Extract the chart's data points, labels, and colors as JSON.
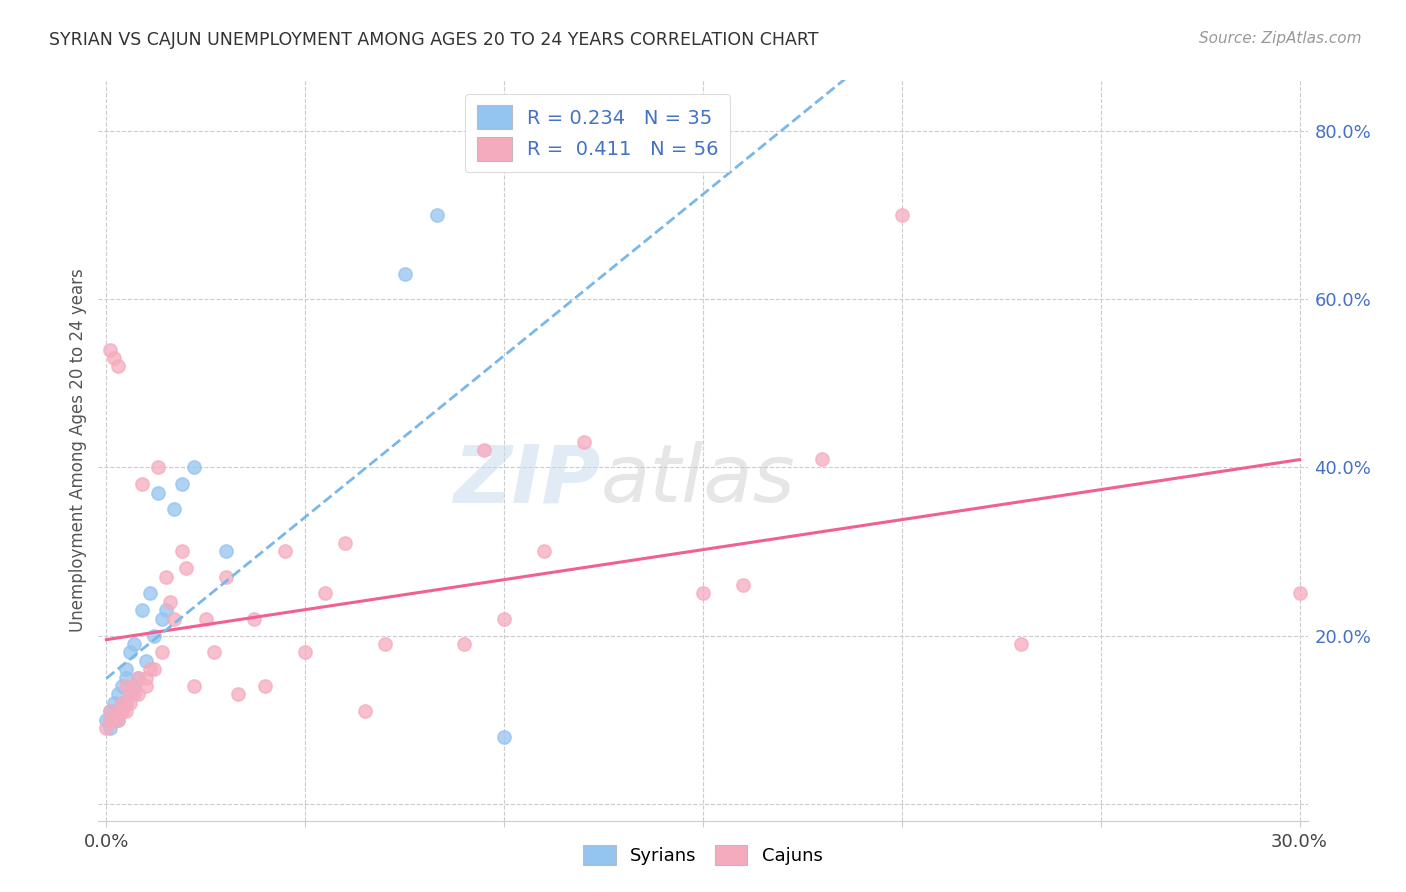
{
  "title": "SYRIAN VS CAJUN UNEMPLOYMENT AMONG AGES 20 TO 24 YEARS CORRELATION CHART",
  "source": "Source: ZipAtlas.com",
  "ylabel": "Unemployment Among Ages 20 to 24 years",
  "xlabel_syrians": "Syrians",
  "xlabel_cajuns": "Cajuns",
  "xlim": [
    -0.002,
    0.302
  ],
  "ylim": [
    -0.02,
    0.86
  ],
  "xtick_positions": [
    0.0,
    0.05,
    0.1,
    0.15,
    0.2,
    0.25,
    0.3
  ],
  "xtick_labels": [
    "0.0%",
    "",
    "",
    "",
    "",
    "",
    "30.0%"
  ],
  "ytick_positions": [
    0.0,
    0.2,
    0.4,
    0.6,
    0.8
  ],
  "ytick_labels": [
    "",
    "20.0%",
    "40.0%",
    "60.0%",
    "80.0%"
  ],
  "legend_r1": "R = 0.234",
  "legend_n1": "N = 35",
  "legend_r2": "R =  0.411",
  "legend_n2": "N = 56",
  "syrian_color": "#94C4F0",
  "cajun_color": "#F5ABBE",
  "syrian_line_color": "#7AB8E8",
  "cajun_line_color": "#F06090",
  "background_color": "#FFFFFF",
  "grid_color": "#CCCCCC",
  "watermark_zip": "ZIP",
  "watermark_atlas": "atlas",
  "syrians_x": [
    0.0,
    0.001,
    0.001,
    0.001,
    0.002,
    0.002,
    0.002,
    0.003,
    0.003,
    0.003,
    0.004,
    0.004,
    0.004,
    0.005,
    0.005,
    0.005,
    0.006,
    0.006,
    0.007,
    0.007,
    0.008,
    0.009,
    0.01,
    0.011,
    0.012,
    0.013,
    0.014,
    0.015,
    0.017,
    0.019,
    0.022,
    0.03,
    0.075,
    0.083,
    0.1
  ],
  "syrians_y": [
    0.1,
    0.09,
    0.1,
    0.11,
    0.1,
    0.11,
    0.12,
    0.1,
    0.11,
    0.13,
    0.11,
    0.12,
    0.14,
    0.12,
    0.15,
    0.16,
    0.13,
    0.18,
    0.14,
    0.19,
    0.15,
    0.23,
    0.17,
    0.25,
    0.2,
    0.37,
    0.22,
    0.23,
    0.35,
    0.38,
    0.4,
    0.3,
    0.63,
    0.7,
    0.08
  ],
  "cajuns_x": [
    0.0,
    0.001,
    0.001,
    0.001,
    0.002,
    0.002,
    0.003,
    0.003,
    0.003,
    0.004,
    0.004,
    0.005,
    0.005,
    0.005,
    0.006,
    0.006,
    0.007,
    0.007,
    0.008,
    0.008,
    0.009,
    0.01,
    0.01,
    0.011,
    0.012,
    0.013,
    0.014,
    0.015,
    0.016,
    0.017,
    0.019,
    0.02,
    0.022,
    0.025,
    0.027,
    0.03,
    0.033,
    0.037,
    0.04,
    0.045,
    0.05,
    0.055,
    0.06,
    0.065,
    0.07,
    0.09,
    0.095,
    0.1,
    0.11,
    0.12,
    0.15,
    0.16,
    0.18,
    0.2,
    0.23,
    0.3
  ],
  "cajuns_y": [
    0.09,
    0.1,
    0.11,
    0.54,
    0.1,
    0.53,
    0.1,
    0.11,
    0.52,
    0.11,
    0.12,
    0.11,
    0.12,
    0.14,
    0.12,
    0.13,
    0.13,
    0.14,
    0.13,
    0.15,
    0.38,
    0.14,
    0.15,
    0.16,
    0.16,
    0.4,
    0.18,
    0.27,
    0.24,
    0.22,
    0.3,
    0.28,
    0.14,
    0.22,
    0.18,
    0.27,
    0.13,
    0.22,
    0.14,
    0.3,
    0.18,
    0.25,
    0.31,
    0.11,
    0.19,
    0.19,
    0.42,
    0.22,
    0.3,
    0.43,
    0.25,
    0.26,
    0.41,
    0.7,
    0.19,
    0.25
  ]
}
